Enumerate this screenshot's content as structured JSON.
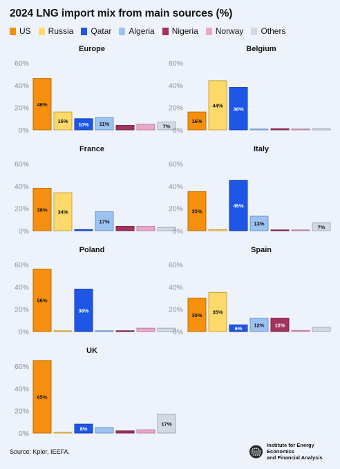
{
  "title": "2024 LNG import mix from main sources (%)",
  "source": "Source: Kpler, IEEFA.",
  "logo": {
    "line1": "Institute for Energy Economics",
    "line2": "and Financial Analysis"
  },
  "legend": [
    {
      "name": "US",
      "color": "#f5900f"
    },
    {
      "name": "Russia",
      "color": "#fdd96a"
    },
    {
      "name": "Qatar",
      "color": "#1f56e6"
    },
    {
      "name": "Algeria",
      "color": "#9cc2f2"
    },
    {
      "name": "Nigeria",
      "color": "#a2335d"
    },
    {
      "name": "Norway",
      "color": "#e8a8c9"
    },
    {
      "name": "Others",
      "color": "#d2d9e1"
    }
  ],
  "chart_data": [
    {
      "type": "bar",
      "title": "Europe",
      "ylim": [
        0,
        60
      ],
      "yticks": [
        "0%",
        "20%",
        "40%",
        "60%"
      ],
      "categories": [
        "US",
        "Russia",
        "Qatar",
        "Algeria",
        "Nigeria",
        "Norway",
        "Others"
      ],
      "values": [
        46,
        16,
        10,
        11,
        4,
        5,
        7
      ],
      "labels": [
        "46%",
        "16%",
        "10%",
        "11%",
        "",
        "",
        "7%"
      ]
    },
    {
      "type": "bar",
      "title": "Belgium",
      "ylim": [
        0,
        60
      ],
      "yticks": [
        "0%",
        "20%",
        "40%",
        "60%"
      ],
      "categories": [
        "US",
        "Russia",
        "Qatar",
        "Algeria",
        "Nigeria",
        "Norway",
        "Others"
      ],
      "values": [
        16,
        44,
        38,
        0.3,
        1,
        0.3,
        1
      ],
      "labels": [
        "16%",
        "44%",
        "38%",
        "",
        "",
        "",
        ""
      ]
    },
    {
      "type": "bar",
      "title": "France",
      "ylim": [
        0,
        60
      ],
      "yticks": [
        "0%",
        "20%",
        "40%",
        "60%"
      ],
      "categories": [
        "US",
        "Russia",
        "Qatar",
        "Algeria",
        "Nigeria",
        "Norway",
        "Others"
      ],
      "values": [
        38,
        34,
        1,
        17,
        4,
        4,
        3
      ],
      "labels": [
        "38%",
        "34%",
        "",
        "17%",
        "",
        "",
        ""
      ]
    },
    {
      "type": "bar",
      "title": "Italy",
      "ylim": [
        0,
        60
      ],
      "yticks": [
        "0%",
        "20%",
        "40%",
        "60%"
      ],
      "categories": [
        "US",
        "Russia",
        "Qatar",
        "Algeria",
        "Nigeria",
        "Norway",
        "Others"
      ],
      "values": [
        35,
        1,
        45,
        13,
        0.3,
        0.3,
        7
      ],
      "labels": [
        "35%",
        "",
        "45%",
        "13%",
        "",
        "",
        "7%"
      ]
    },
    {
      "type": "bar",
      "title": "Poland",
      "ylim": [
        0,
        60
      ],
      "yticks": [
        "0%",
        "20%",
        "40%",
        "60%"
      ],
      "categories": [
        "US",
        "Russia",
        "Qatar",
        "Algeria",
        "Nigeria",
        "Norway",
        "Others"
      ],
      "values": [
        56,
        0.3,
        38,
        0.3,
        0.3,
        3,
        3
      ],
      "labels": [
        "56%",
        "",
        "38%",
        "",
        "",
        "",
        ""
      ]
    },
    {
      "type": "bar",
      "title": "Spain",
      "ylim": [
        0,
        60
      ],
      "yticks": [
        "0%",
        "20%",
        "40%",
        "60%"
      ],
      "categories": [
        "US",
        "Russia",
        "Qatar",
        "Algeria",
        "Nigeria",
        "Norway",
        "Others"
      ],
      "values": [
        30,
        35,
        6,
        12,
        12,
        1,
        4
      ],
      "labels": [
        "30%",
        "35%",
        "6%",
        "12%",
        "12%",
        "",
        ""
      ]
    },
    {
      "type": "bar",
      "title": "UK",
      "ylim": [
        0,
        60
      ],
      "yticks": [
        "0%",
        "20%",
        "40%",
        "60%"
      ],
      "categories": [
        "US",
        "Russia",
        "Qatar",
        "Algeria",
        "Nigeria",
        "Norway",
        "Others"
      ],
      "values": [
        65,
        0.3,
        8,
        5,
        2,
        3,
        17
      ],
      "labels": [
        "65%",
        "",
        "8%",
        "",
        "",
        "",
        "17%"
      ]
    }
  ]
}
